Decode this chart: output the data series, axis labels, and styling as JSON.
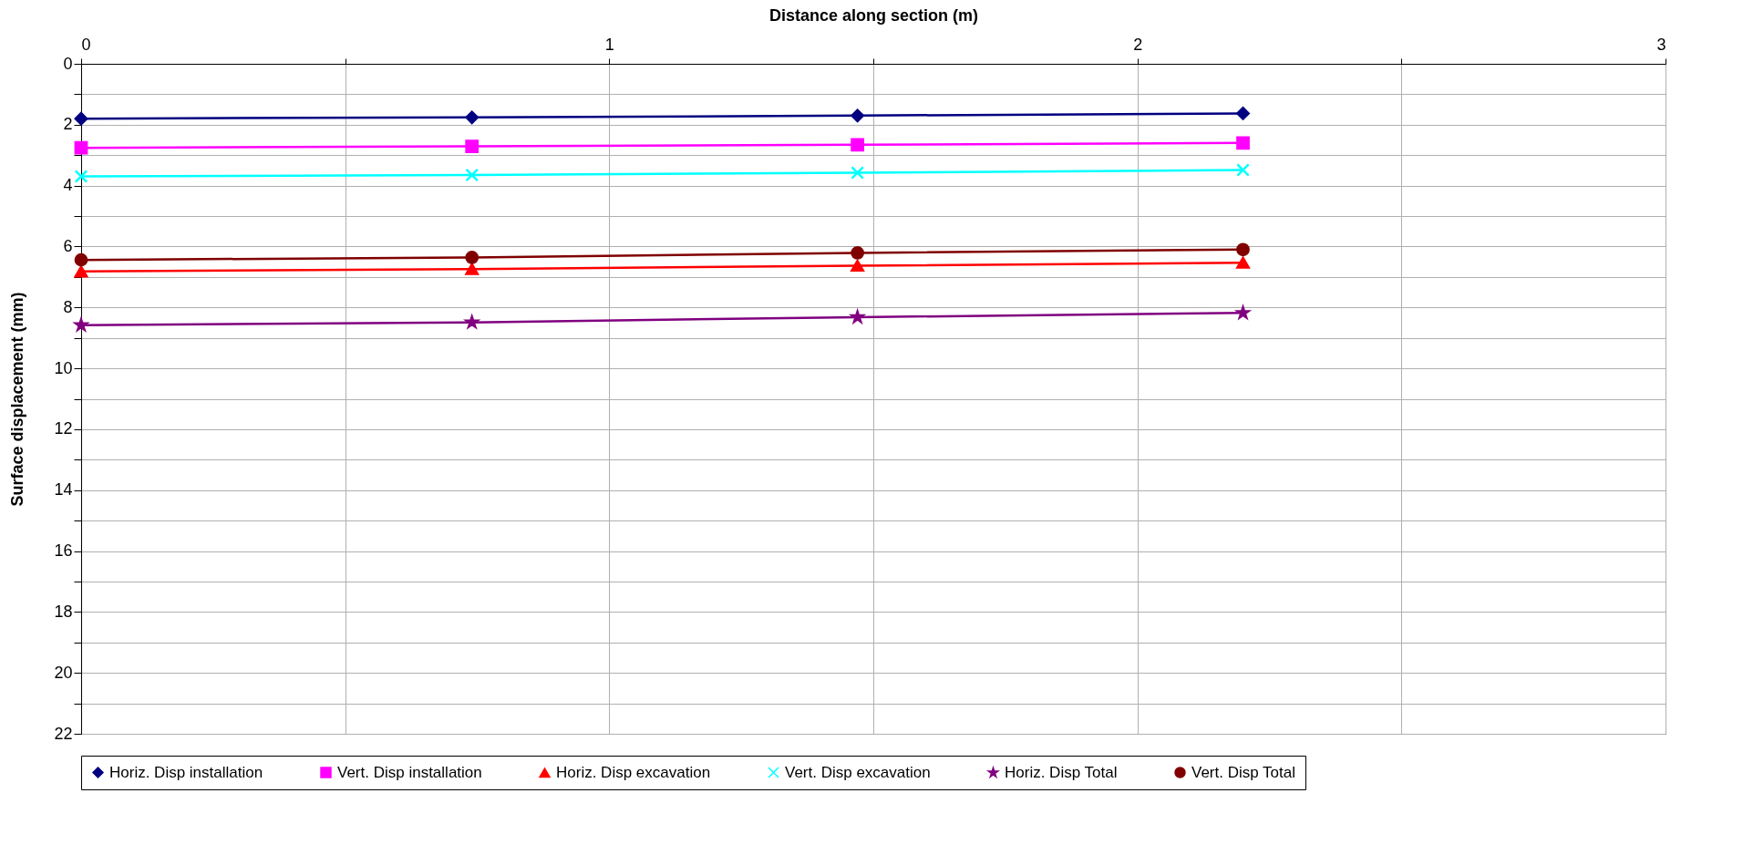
{
  "chart_data": {
    "type": "line",
    "xlabel": "Distance along section (m)",
    "ylabel": "Surface displacement (mm)",
    "x": [
      0,
      0.74,
      1.47,
      2.2
    ],
    "xlim": [
      0,
      3
    ],
    "xticks": [
      0,
      {
        "value": 0.5,
        "label": null
      },
      1,
      {
        "value": 1.5,
        "label": null
      },
      2,
      {
        "value": 2.5,
        "label": null
      },
      3
    ],
    "ylim": [
      22,
      0
    ],
    "yticks": [
      0,
      {
        "value": 1,
        "label": null
      },
      2,
      {
        "value": 3,
        "label": null
      },
      4,
      {
        "value": 5,
        "label": null
      },
      6,
      {
        "value": 7,
        "label": null
      },
      8,
      {
        "value": 9,
        "label": null
      },
      10,
      {
        "value": 11,
        "label": null
      },
      12,
      {
        "value": 13,
        "label": null
      },
      14,
      {
        "value": 15,
        "label": null
      },
      16,
      {
        "value": 17,
        "label": null
      },
      18,
      {
        "value": 19,
        "label": null
      },
      20,
      {
        "value": 21,
        "label": null
      },
      22
    ],
    "grid": true,
    "legend": "bottom",
    "line_style": "solid",
    "series": [
      {
        "name": "Horiz. Disp installation",
        "color": "#000080",
        "marker": "diamond",
        "values": [
          1.8,
          1.76,
          1.7,
          1.63
        ]
      },
      {
        "name": "Vert. Disp installation",
        "color": "#ff00ff",
        "marker": "square",
        "values": [
          2.76,
          2.71,
          2.66,
          2.6
        ]
      },
      {
        "name": "Horiz. Disp excavation",
        "color": "#ff0000",
        "marker": "triangle",
        "values": [
          6.82,
          6.74,
          6.63,
          6.53
        ]
      },
      {
        "name": "Vert. Disp excavation",
        "color": "#00ffff",
        "marker": "cross",
        "values": [
          3.7,
          3.65,
          3.58,
          3.49
        ]
      },
      {
        "name": "Horiz. Disp Total",
        "color": "#800080",
        "marker": "star",
        "values": [
          8.58,
          8.49,
          8.32,
          8.18
        ]
      },
      {
        "name": "Vert. Disp Total",
        "color": "#800000",
        "marker": "circle",
        "values": [
          6.44,
          6.36,
          6.21,
          6.1
        ]
      }
    ]
  }
}
